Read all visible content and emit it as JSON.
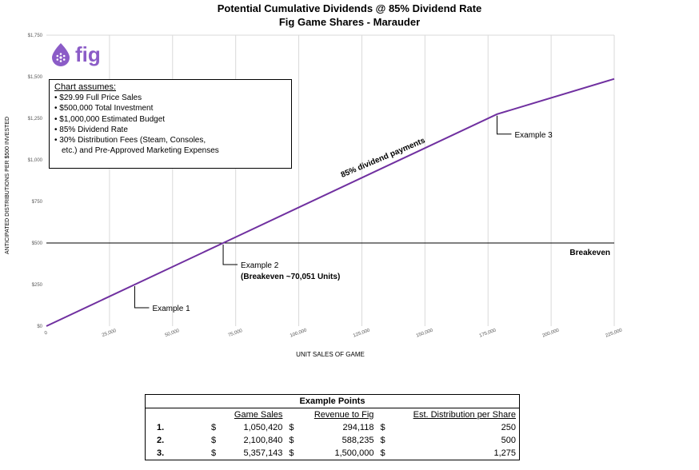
{
  "chart_data": {
    "type": "line",
    "title": "Potential Cumulative Dividends @ 85% Dividend Rate",
    "subtitle": "Fig Game Shares - Marauder",
    "xlabel": "UNIT SALES OF GAME",
    "ylabel": "ANTICIPATED DISTRIBUTIONS  PER $500 INVESTED",
    "xlim": [
      0,
      225000
    ],
    "ylim": [
      0,
      1750
    ],
    "xticks": [
      0,
      25000,
      50000,
      75000,
      100000,
      125000,
      150000,
      175000,
      200000,
      225000
    ],
    "xtick_labels": [
      "0",
      "25,000",
      "50,000",
      "75,000",
      "100,000",
      "125,000",
      "150,000",
      "175,000",
      "200,000",
      "225,000"
    ],
    "yticks": [
      0,
      250,
      500,
      750,
      1000,
      1250,
      1500,
      1750
    ],
    "ytick_labels": [
      "$0",
      "$250",
      "$500",
      "$750",
      "$1,000",
      "$1,250",
      "$1,500",
      "$1,750"
    ],
    "grid": "vertical",
    "series": [
      {
        "name": "",
        "color": "#7030a0",
        "x": [
          0,
          70051,
          178571,
          225000
        ],
        "y": [
          0,
          500,
          1275,
          1487
        ]
      }
    ],
    "reference_lines": [
      {
        "y": 500,
        "label": "Breakeven"
      }
    ],
    "annotations": [
      {
        "text": "85% dividend payments"
      },
      {
        "text": "Example 1",
        "x": 35000,
        "y": 250
      },
      {
        "text": "Example 2",
        "sub": "(Breakeven ~70,051 Units)",
        "x": 70051,
        "y": 500
      },
      {
        "text": "Example 3",
        "x": 178571,
        "y": 1275
      }
    ]
  },
  "brand": {
    "name": "fig",
    "color": "#8b5cc7"
  },
  "assumptions": {
    "header": "Chart assumes:",
    "items": [
      "• $29.99 Full Price Sales",
      "• $500,000 Total Investment",
      "• $1,000,000 Estimated Budget",
      "• 85% Dividend Rate",
      "• 30% Distribution Fees (Steam, Consoles,",
      "etc.) and Pre-Approved Marketing Expenses"
    ]
  },
  "table": {
    "title": "Example Points",
    "headers": [
      "Game Sales",
      "Revenue to Fig",
      "Est. Distribution per Share"
    ],
    "currency": "$",
    "rows": [
      {
        "label": "1.",
        "sales": "1,050,420",
        "revenue": "294,118",
        "dist": "250"
      },
      {
        "label": "2.",
        "sales": "2,100,840",
        "revenue": "588,235",
        "dist": "500"
      },
      {
        "label": "3.",
        "sales": "5,357,143",
        "revenue": "1,500,000",
        "dist": "1,275"
      }
    ]
  }
}
